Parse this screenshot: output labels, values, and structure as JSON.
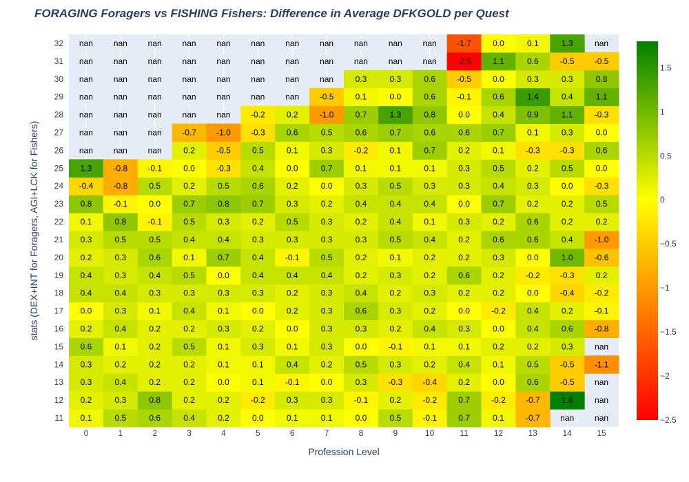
{
  "chart_data": {
    "type": "heatmap",
    "title": "FORAGING Foragers vs FISHING Fishers: Difference in Average DFKGOLD per Quest",
    "xlabel": "Profession Level",
    "ylabel": "stats (DEX+INT for Foragers, AGI+LCK for Fishers)",
    "x": [
      "0",
      "1",
      "2",
      "3",
      "4",
      "5",
      "6",
      "7",
      "8",
      "9",
      "10",
      "11",
      "12",
      "13",
      "14",
      "15"
    ],
    "y": [
      "11",
      "12",
      "13",
      "14",
      "15",
      "16",
      "17",
      "18",
      "19",
      "20",
      "21",
      "22",
      "23",
      "24",
      "25",
      "26",
      "27",
      "28",
      "29",
      "30",
      "31",
      "32"
    ],
    "zmin": -2.5,
    "zmax": 1.8,
    "colorscale": [
      "#ff0000",
      "#ffff00",
      "#008000"
    ],
    "colorbar_ticks": [
      1.5,
      1,
      0.5,
      0,
      -0.5,
      -1,
      -1.5,
      -2,
      -2.5
    ],
    "colorbar_tick_labels": [
      "1.5",
      "1",
      "0.5",
      "0",
      "−0.5",
      "−1",
      "−1.5",
      "−2",
      "−2.5"
    ],
    "nan_label": "nan",
    "z": [
      [
        0.1,
        0.5,
        0.6,
        0.4,
        0.2,
        0.0,
        0.1,
        0.1,
        -0.0,
        0.5,
        -0.1,
        0.7,
        0.1,
        -0.7,
        null,
        null
      ],
      [
        0.2,
        0.3,
        0.8,
        0.2,
        0.2,
        -0.2,
        0.3,
        0.3,
        -0.1,
        0.2,
        -0.2,
        0.7,
        -0.2,
        -0.7,
        1.8,
        null
      ],
      [
        0.3,
        0.4,
        0.2,
        0.2,
        0.0,
        0.1,
        -0.1,
        0.0,
        0.3,
        -0.3,
        -0.4,
        0.2,
        0.0,
        0.6,
        -0.5,
        null
      ],
      [
        0.3,
        0.2,
        0.2,
        0.2,
        0.1,
        0.1,
        0.4,
        0.2,
        0.5,
        0.3,
        0.2,
        0.4,
        0.1,
        0.5,
        -0.5,
        -1.1
      ],
      [
        0.6,
        0.1,
        0.2,
        0.5,
        0.1,
        0.3,
        0.1,
        0.3,
        0.0,
        -0.1,
        0.1,
        0.1,
        0.2,
        0.2,
        0.3,
        null
      ],
      [
        0.2,
        0.4,
        0.2,
        0.2,
        0.3,
        0.2,
        0.0,
        0.3,
        0.3,
        0.2,
        0.4,
        0.3,
        0.0,
        0.4,
        0.6,
        -0.8
      ],
      [
        0.0,
        0.3,
        0.1,
        0.4,
        0.1,
        -0.0,
        0.2,
        0.3,
        0.6,
        0.3,
        0.2,
        0.0,
        -0.2,
        0.4,
        0.2,
        -0.1
      ],
      [
        0.4,
        0.4,
        0.3,
        0.3,
        0.3,
        0.3,
        0.2,
        0.3,
        0.4,
        0.2,
        0.3,
        0.2,
        0.2,
        0.0,
        -0.4,
        -0.2
      ],
      [
        0.4,
        0.3,
        0.4,
        0.5,
        -0.0,
        0.4,
        0.4,
        0.4,
        0.2,
        0.3,
        0.2,
        0.6,
        0.2,
        -0.2,
        -0.3,
        0.2
      ],
      [
        0.2,
        0.3,
        0.6,
        0.1,
        0.7,
        0.4,
        -0.1,
        0.5,
        0.2,
        0.1,
        0.2,
        0.2,
        0.3,
        0.0,
        1.0,
        -0.6
      ],
      [
        0.3,
        0.5,
        0.5,
        0.4,
        0.4,
        0.3,
        0.3,
        0.3,
        0.3,
        0.5,
        0.4,
        0.2,
        0.6,
        0.6,
        0.4,
        -1.0
      ],
      [
        0.1,
        0.8,
        -0.1,
        0.5,
        0.3,
        0.2,
        0.5,
        0.3,
        0.2,
        0.4,
        0.1,
        0.3,
        0.2,
        0.6,
        0.2,
        0.2
      ],
      [
        0.8,
        -0.1,
        -0.0,
        0.7,
        0.8,
        0.7,
        0.3,
        0.2,
        0.4,
        0.4,
        0.4,
        -0.0,
        0.7,
        0.2,
        0.2,
        0.5
      ],
      [
        -0.4,
        -0.8,
        0.5,
        0.2,
        0.5,
        0.6,
        0.2,
        0.0,
        0.3,
        0.5,
        0.3,
        0.3,
        0.4,
        0.3,
        -0.0,
        -0.3
      ],
      [
        1.3,
        -0.8,
        -0.1,
        0.0,
        -0.3,
        0.4,
        -0.0,
        0.7,
        0.1,
        0.1,
        0.1,
        0.3,
        0.5,
        0.2,
        0.5,
        -0.0
      ],
      [
        null,
        null,
        null,
        0.2,
        -0.5,
        0.5,
        0.1,
        0.3,
        -0.2,
        0.1,
        0.7,
        0.2,
        0.1,
        -0.3,
        -0.3,
        0.6
      ],
      [
        null,
        null,
        null,
        -0.7,
        -1.0,
        -0.3,
        0.6,
        0.5,
        0.6,
        0.7,
        0.6,
        0.6,
        0.7,
        0.1,
        0.3,
        0.0
      ],
      [
        null,
        null,
        null,
        null,
        null,
        -0.2,
        0.2,
        -1.0,
        0.7,
        1.3,
        0.8,
        -0.0,
        0.4,
        0.9,
        1.1,
        -0.3
      ],
      [
        null,
        null,
        null,
        null,
        null,
        null,
        null,
        -0.5,
        0.1,
        -0.0,
        0.6,
        -0.1,
        0.6,
        1.4,
        0.4,
        1.1
      ],
      [
        null,
        null,
        null,
        null,
        null,
        null,
        null,
        null,
        0.3,
        0.3,
        0.6,
        -0.5,
        0.0,
        0.3,
        0.3,
        0.8
      ],
      [
        null,
        null,
        null,
        null,
        null,
        null,
        null,
        null,
        null,
        null,
        null,
        -2.5,
        1.1,
        0.6,
        -0.5,
        -0.5
      ],
      [
        null,
        null,
        null,
        null,
        null,
        null,
        null,
        null,
        null,
        null,
        null,
        -1.7,
        -0.0,
        0.1,
        1.3,
        null
      ]
    ]
  }
}
